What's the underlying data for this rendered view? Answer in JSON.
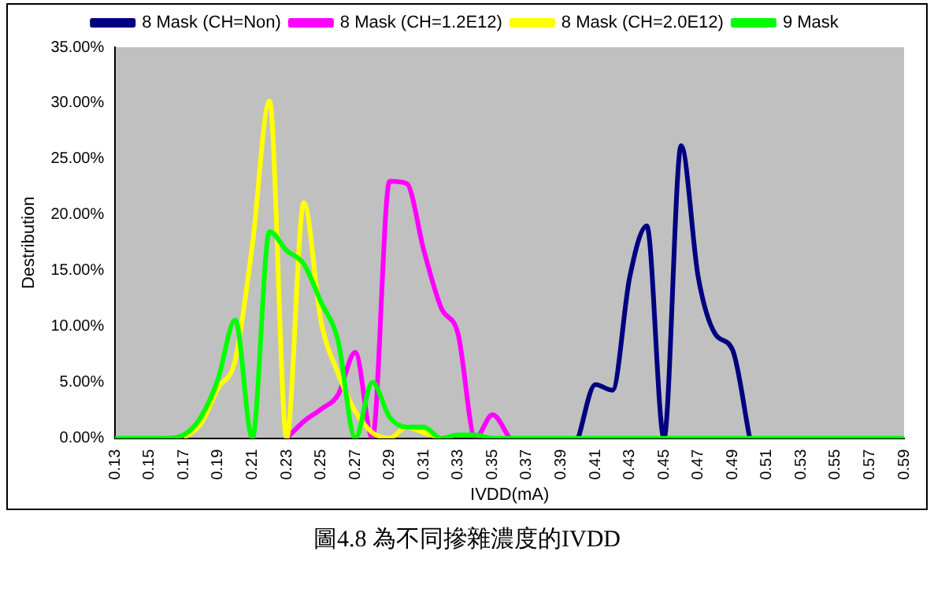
{
  "chart_data": {
    "type": "line",
    "xlabel": "IVDD(mA)",
    "ylabel": "Destribution",
    "categories": [
      "0.13",
      null,
      "0.15",
      null,
      "0.17",
      null,
      "0.19",
      null,
      "0.21",
      null,
      "0.23",
      null,
      "0.25",
      null,
      "0.27",
      null,
      "0.29",
      null,
      "0.31",
      null,
      "0.33",
      null,
      "0.35",
      null,
      "0.37",
      null,
      "0.39",
      null,
      "0.41",
      null,
      "0.43",
      null,
      "0.45",
      null,
      "0.47",
      null,
      "0.49",
      null,
      "0.51",
      null,
      "0.53",
      null,
      "0.55",
      null,
      "0.57",
      null,
      "0.59"
    ],
    "series": [
      {
        "name": "8 Mask (CH=Non)",
        "color": "#000080",
        "values": [
          null,
          null,
          null,
          null,
          null,
          null,
          null,
          null,
          null,
          null,
          null,
          null,
          null,
          null,
          null,
          null,
          null,
          null,
          null,
          null,
          null,
          null,
          null,
          null,
          null,
          null,
          null,
          0,
          4.8,
          4.3,
          14.4,
          19.0,
          0,
          26.2,
          14.4,
          9.3,
          7.9,
          0,
          null,
          null,
          null,
          null,
          null,
          null,
          null,
          null,
          null
        ]
      },
      {
        "name": "8 Mask (CH=1.2E12)",
        "color": "#ff00ff",
        "values": [
          null,
          null,
          null,
          null,
          null,
          null,
          null,
          null,
          null,
          null,
          0,
          1.5,
          2.6,
          3.9,
          7.7,
          0,
          23.0,
          22.8,
          16.8,
          11.7,
          9.3,
          0,
          2.1,
          0,
          null,
          null,
          null,
          null,
          null,
          null,
          null,
          null,
          null,
          null,
          null,
          null,
          null,
          null,
          null,
          null,
          null,
          null,
          null,
          null,
          null,
          null,
          null
        ]
      },
      {
        "name": "8 Mask (CH=2.0E12)",
        "color": "#ffff00",
        "values": [
          null,
          null,
          null,
          null,
          0,
          1.3,
          4.5,
          7.0,
          17.3,
          30.2,
          0,
          21.1,
          10.5,
          5.8,
          2.4,
          0.5,
          0,
          1.0,
          0.5,
          0,
          null,
          null,
          null,
          null,
          null,
          null,
          null,
          null,
          null,
          null,
          null,
          null,
          null,
          null,
          null,
          null,
          null,
          null,
          null,
          null,
          null,
          null,
          null,
          null,
          null,
          null,
          null
        ]
      },
      {
        "name": "9 Mask",
        "color": "#00ff00",
        "values": [
          0,
          0,
          0,
          0,
          0.3,
          1.9,
          5.3,
          10.6,
          0,
          18.5,
          16.8,
          15.6,
          12.2,
          8.7,
          0,
          5.0,
          1.9,
          1.0,
          1.0,
          0,
          0.3,
          0.3,
          0,
          0,
          0,
          0,
          0,
          0,
          0,
          0,
          0,
          0,
          0,
          0,
          0,
          0,
          0,
          0,
          0,
          0,
          0,
          0,
          0,
          0,
          0,
          0,
          0
        ]
      }
    ],
    "ylim": [
      0,
      35
    ],
    "yticks": [
      {
        "value": 0,
        "label": "0.00%"
      },
      {
        "value": 5,
        "label": "5.00%"
      },
      {
        "value": 10,
        "label": "10.00%"
      },
      {
        "value": 15,
        "label": "15.00%"
      },
      {
        "value": 20,
        "label": "20.00%"
      },
      {
        "value": 25,
        "label": "25.00%"
      },
      {
        "value": 30,
        "label": "30.00%"
      },
      {
        "value": 35,
        "label": "35.00%"
      }
    ],
    "grid": false,
    "legend": "top",
    "marker": "none",
    "line_style": "solid",
    "annotations": [
      "圖4.8 為不同摻雜濃度的IVDD"
    ]
  }
}
